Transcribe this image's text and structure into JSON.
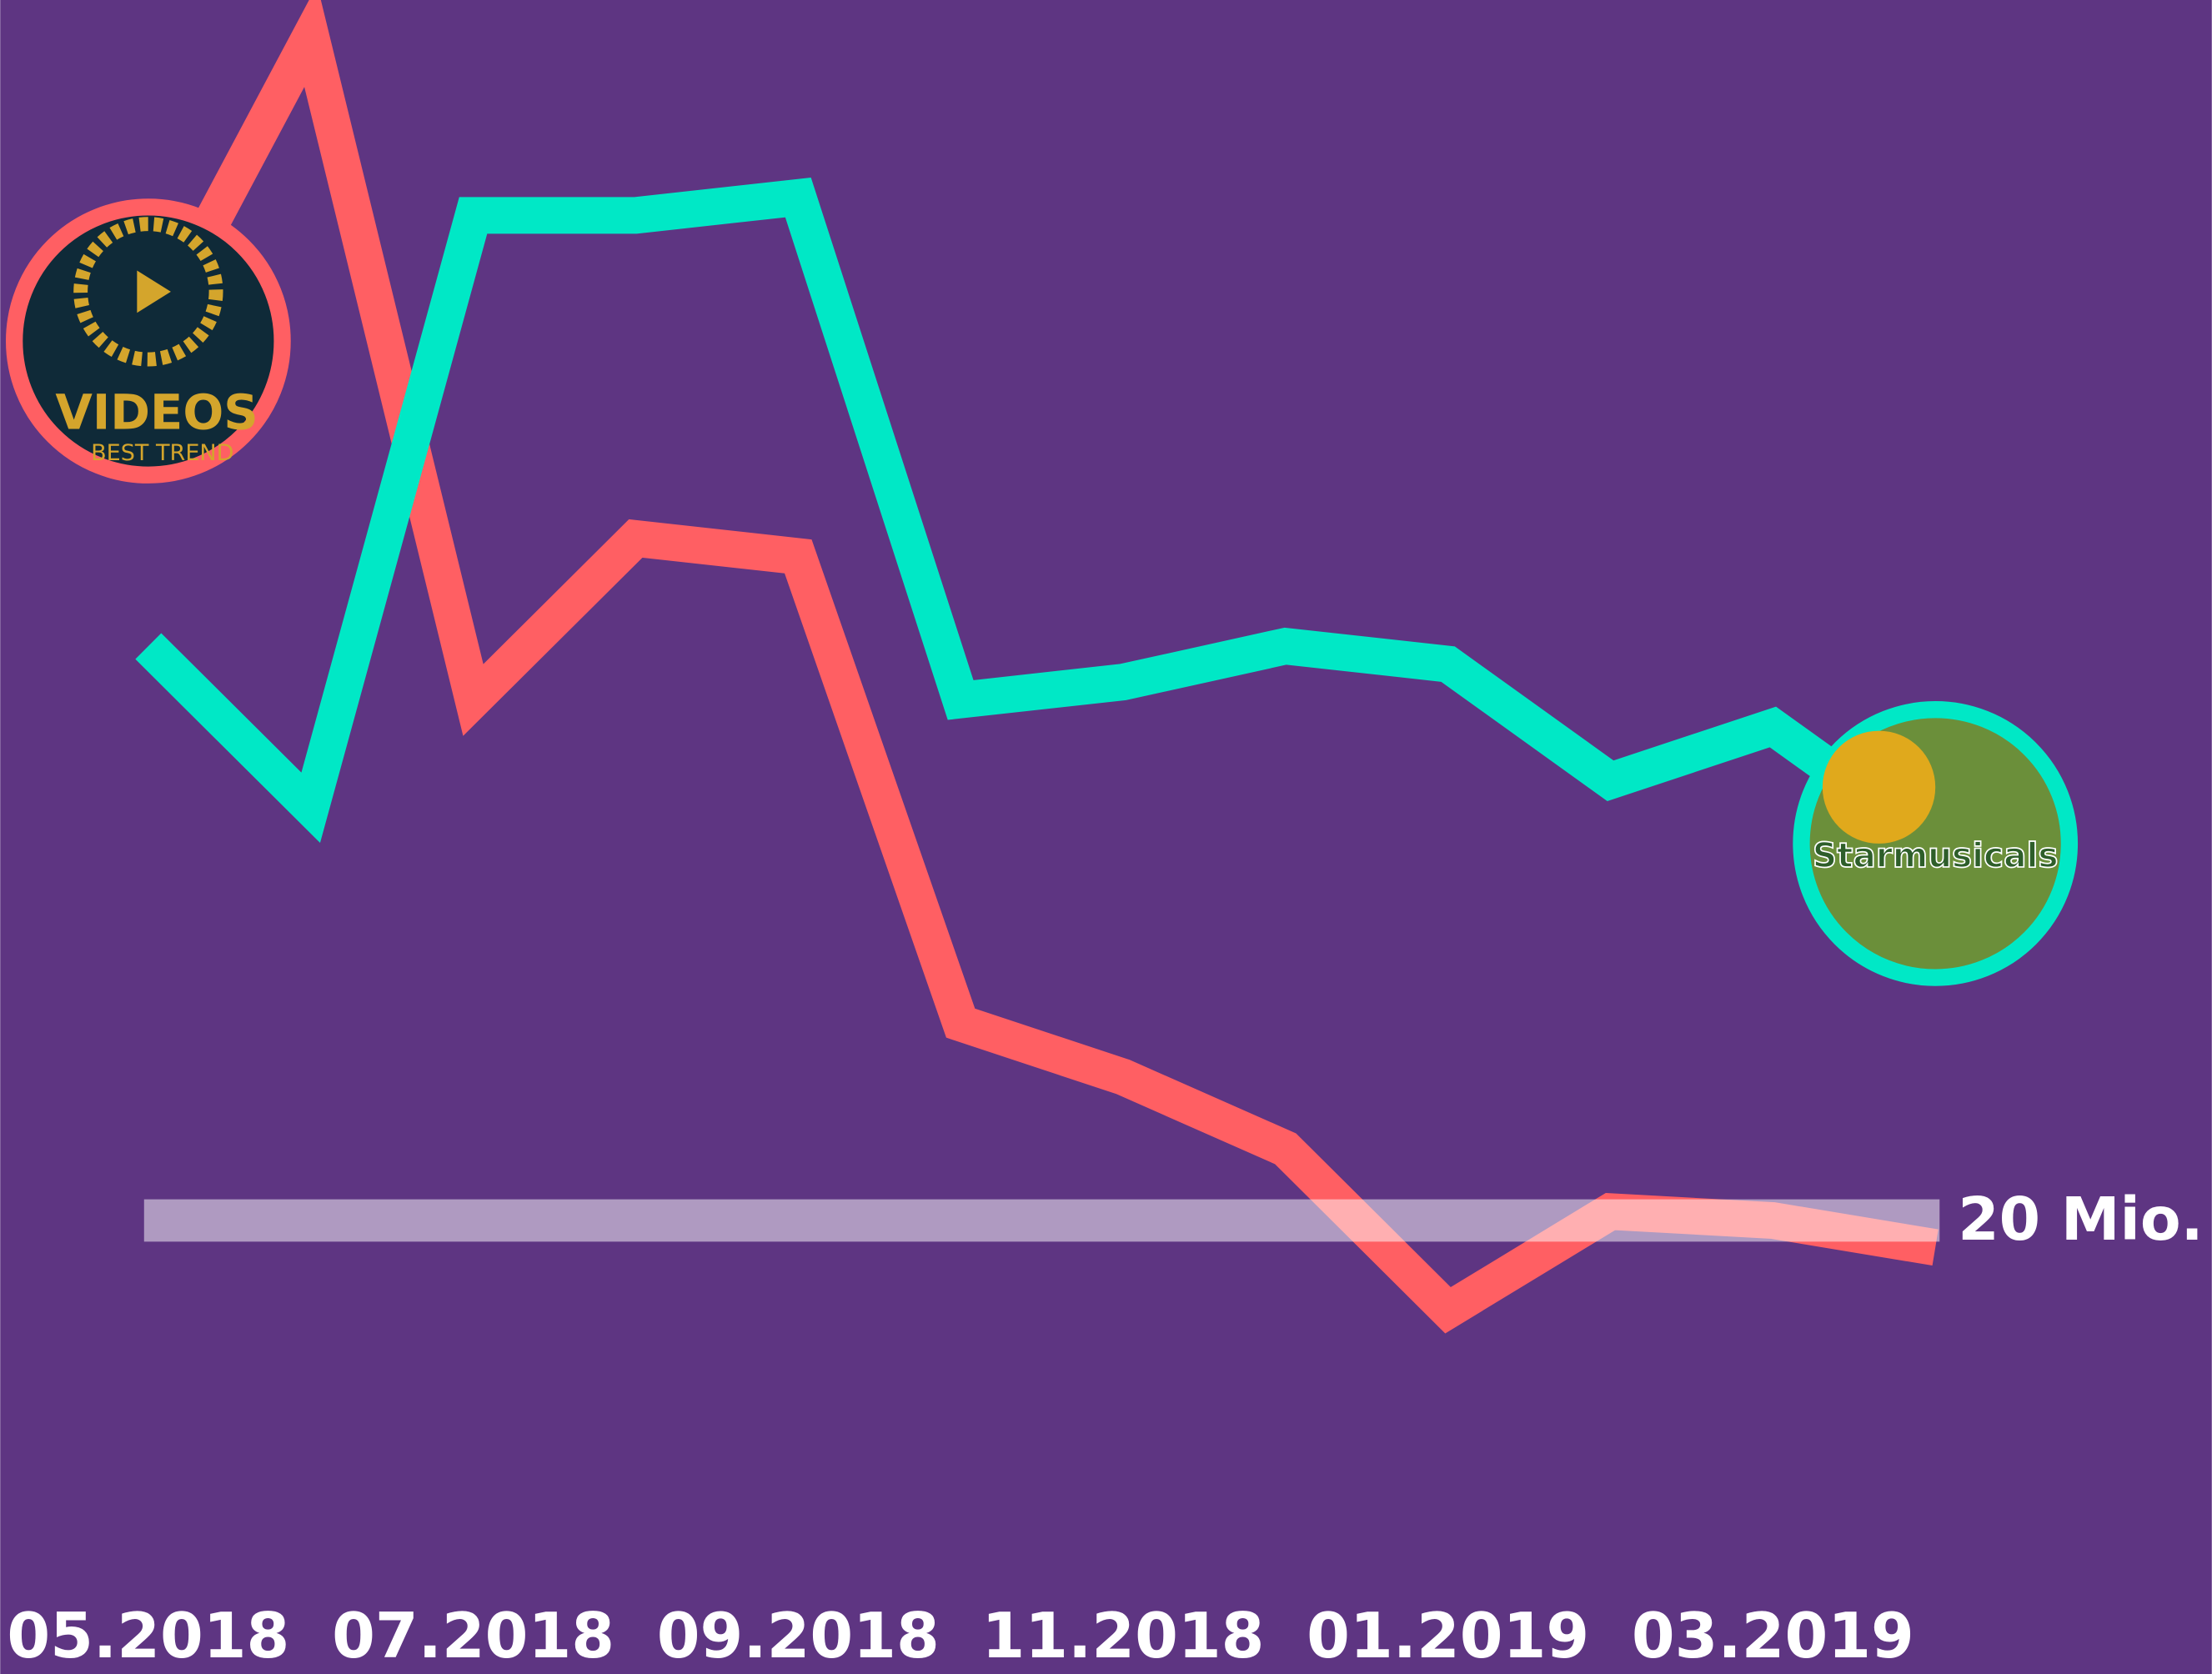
{
  "chart_data": {
    "type": "line",
    "categories": [
      "05.2018",
      null,
      "07.2018",
      null,
      "09.2018",
      null,
      "11.2018",
      null,
      "01.2019",
      null,
      "03.2019",
      null
    ],
    "series": [
      {
        "name": "VIDEOS",
        "tagline": "BEST TREND",
        "color": "#ff5f63",
        "values": [
          69,
          86,
          49,
          58,
          57,
          31,
          28,
          24,
          15,
          20.5,
          20,
          18.5
        ]
      },
      {
        "name": "Starmusicals",
        "color": "#00e8c6",
        "values": [
          52,
          43,
          76,
          76,
          77,
          49,
          50,
          52,
          51,
          44.5,
          47.5,
          41
        ]
      }
    ],
    "ylim": [
      0,
      88
    ],
    "reference_line": {
      "value": 20,
      "label": "20 Mio."
    },
    "background": "#5e3582"
  }
}
